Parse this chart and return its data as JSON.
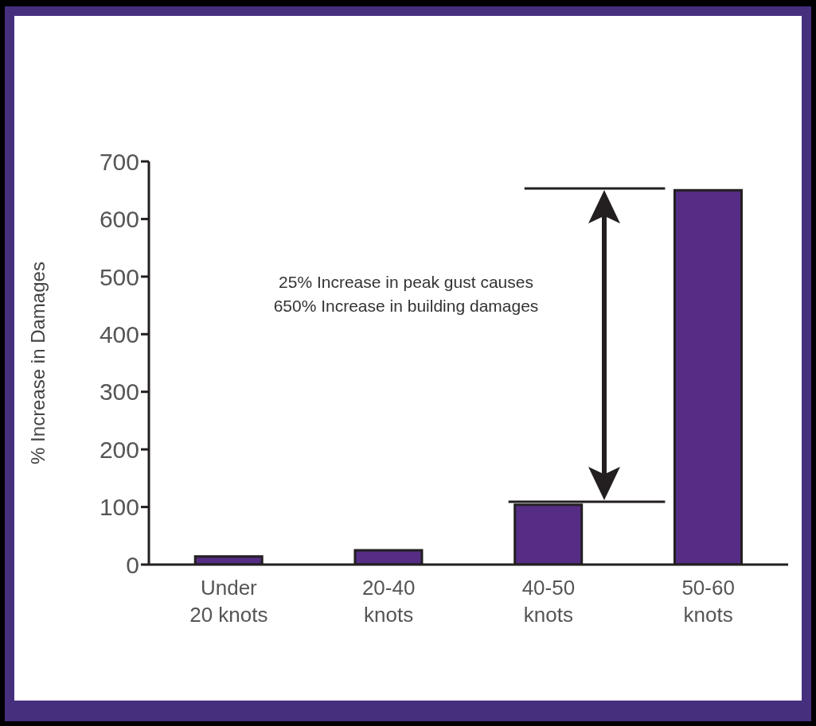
{
  "chart_data": {
    "type": "bar",
    "ylabel": "% Increase in Damages",
    "categories": [
      "Under 20 knots",
      "20-40 knots",
      "40-50 knots",
      "50-60 knots"
    ],
    "values": [
      14,
      25,
      104,
      650
    ],
    "color": "#552d84",
    "ylim": [
      0,
      700
    ],
    "yticks": [
      0,
      100,
      200,
      300,
      400,
      500,
      600,
      700
    ],
    "grid": false,
    "legend": false,
    "ref_lines": [
      {
        "axis": "y",
        "value": 109
      },
      {
        "axis": "y",
        "value": 653
      }
    ],
    "annotations": [
      "25% Increase in peak gust causes\n650% Increase in building damages"
    ]
  }
}
